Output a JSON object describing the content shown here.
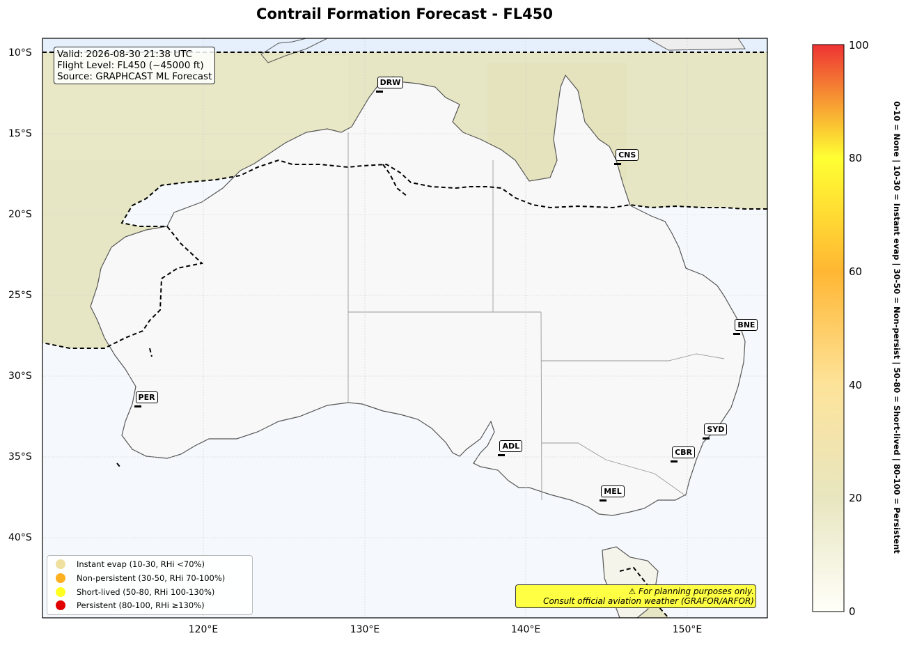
{
  "title": "Contrail Formation Forecast - FL450",
  "info": {
    "valid": "Valid: 2026-08-30 21:38 UTC",
    "flight_level": "Flight Level: FL450 (~45000 ft)",
    "source": "Source: GRAPHCAST ML Forecast"
  },
  "axes": {
    "lat_ticks": [
      "10°S",
      "15°S",
      "20°S",
      "25°S",
      "30°S",
      "35°S",
      "40°S"
    ],
    "lon_ticks": [
      "120°E",
      "130°E",
      "140°E",
      "150°E"
    ]
  },
  "stations": [
    {
      "code": "DRW",
      "lon": 130.9,
      "lat": -12.4
    },
    {
      "code": "CNS",
      "lon": 145.7,
      "lat": -16.9
    },
    {
      "code": "BNE",
      "lon": 153.1,
      "lat": -27.4
    },
    {
      "code": "PER",
      "lon": 115.9,
      "lat": -31.9
    },
    {
      "code": "ADL",
      "lon": 138.5,
      "lat": -34.9
    },
    {
      "code": "SYD",
      "lon": 151.2,
      "lat": -33.9
    },
    {
      "code": "CBR",
      "lon": 149.2,
      "lat": -35.3
    },
    {
      "code": "MEL",
      "lon": 144.8,
      "lat": -37.7
    }
  ],
  "legend": [
    {
      "label": "Instant evap (10-30, RHi <70%)",
      "color": "#f0e0a0"
    },
    {
      "label": "Non-persistent (30-50, RHi 70-100%)",
      "color": "#ffb020"
    },
    {
      "label": "Short-lived (50-80, RHi 100-130%)",
      "color": "#ffff22"
    },
    {
      "label": "Persistent (80-100, RHi ≥130%)",
      "color": "#e00000"
    }
  ],
  "warning": {
    "line1": "⚠ For planning purposes only.",
    "line2": "Consult official aviation weather (GRAFOR/ARFOR)"
  },
  "colorbar": {
    "ticks": [
      "0",
      "20",
      "40",
      "60",
      "80",
      "100"
    ],
    "caption": "0-10 = None  |  10-30 = Instant evap  |  30-50 = Non-persist  |  50-80 = Short-lived  |  80-100 = Persistent",
    "colors": [
      "#fffffa",
      "#e8e6c0",
      "#fde39a",
      "#ffb733",
      "#ffff33",
      "#ee3333"
    ]
  }
}
